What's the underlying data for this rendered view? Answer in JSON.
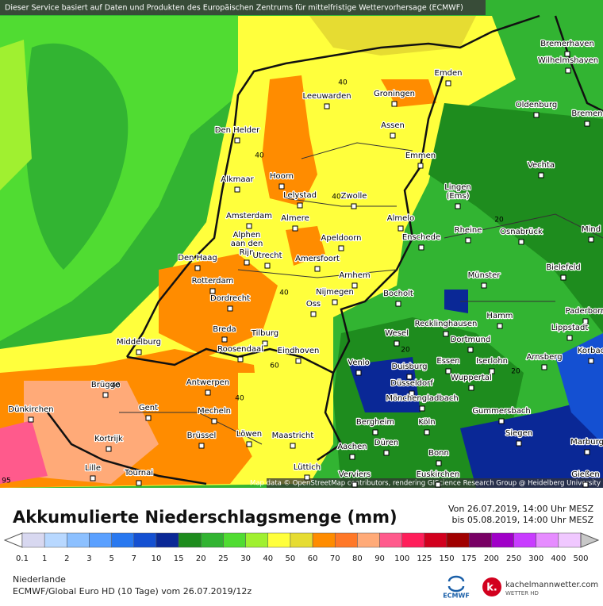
{
  "header": {
    "notice": "Dieser Service basiert auf Daten und Produkten des Europäischen Zentrums für mittelfristige Wettervorhersage (ECMWF)"
  },
  "map": {
    "attribution": "Map data © OpenStreetMap contributors, rendering GIScience Research Group @ Heidelberg University",
    "cities": [
      "Bremerhaven",
      "Wilhelmshaven",
      "Emden",
      "Oldenburg",
      "Bremen",
      "Leeuwarden",
      "Groningen",
      "Assen",
      "Den Helder",
      "Emmen",
      "Vechta",
      "Alkmaar",
      "Hoorn",
      "Lingen\n(Ems)",
      "Zwolle",
      "Lelystad",
      "Amsterdam",
      "Almere",
      "Almelo",
      "Osnabrück",
      "Rheine",
      "Mind",
      "Enschede",
      "Apeldoorn",
      "Alphen\naan den\nRijn",
      "Amersfoort",
      "Utrecht",
      "Den Haag",
      "Bielefeld",
      "Arnhem",
      "Münster",
      "Rotterdam",
      "Nijmegen",
      "Bocholt",
      "Dordrecht",
      "Oss",
      "Paderborn",
      "Hamm",
      "Breda",
      "Tilburg",
      "Recklinghausen",
      "Lippstadt",
      "Wesel",
      "Middelburg",
      "Dortmund",
      "Roosendaal",
      "Eindhoven",
      "Arnsberg",
      "Korbac",
      "Essen",
      "Iserlohn",
      "Venlo",
      "Duisburg",
      "Wuppertal",
      "Antwerpen",
      "Brügge",
      "Düsseldorf",
      "Mönchengladbach",
      "Gent",
      "Mecheln",
      "Gummersbach",
      "Dünkirchen",
      "Bergheim",
      "Köln",
      "Kortrijk",
      "Brüssel",
      "Löwen",
      "Maastricht",
      "Siegen",
      "Düren",
      "Marburg",
      "Aachen",
      "Bonn",
      "Lille",
      "Tournai",
      "Lüttich",
      "Euskirchen",
      "Verviers",
      "Gießen"
    ],
    "contour_labels": [
      "40",
      "40",
      "40",
      "40",
      "20",
      "20",
      "20",
      "60",
      "40",
      "40",
      "95"
    ]
  },
  "panel": {
    "title": "Akkumulierte Niederschlagsmenge (mm)",
    "from": "Von 26.07.2019, 14:00 Uhr MESZ",
    "to": "bis 05.08.2019, 14:00 Uhr MESZ",
    "legend": {
      "labels": [
        "0.1",
        "1",
        "2",
        "3",
        "5",
        "7",
        "10",
        "15",
        "20",
        "25",
        "30",
        "40",
        "50",
        "60",
        "70",
        "80",
        "90",
        "100",
        "125",
        "150",
        "175",
        "200",
        "250",
        "300",
        "400",
        "500"
      ],
      "colors": [
        "#ffffff",
        "#d8d8f0",
        "#b8d8ff",
        "#8cc0ff",
        "#5aa0ff",
        "#2878f0",
        "#1450d2",
        "#0a2896",
        "#1e8c1e",
        "#32b432",
        "#50dc32",
        "#a0f030",
        "#ffff3c",
        "#e6dc32",
        "#ff8c00",
        "#ff7828",
        "#ffaa78",
        "#ff5a8c",
        "#ff1e5a",
        "#d2001e",
        "#a00000",
        "#780064",
        "#a000c8",
        "#c83cff",
        "#e68cff",
        "#f0c8ff",
        "#c8c8c8"
      ]
    },
    "region": "Niederlande",
    "model": "ECMWF/Global Euro HD (10 Tage) vom 26.07.2019/12z",
    "logo_ecmwf": "ECMWF",
    "logo_site": "kachelmannwetter.com",
    "logo_tag": "WETTER HD",
    "logo_k": "k."
  }
}
